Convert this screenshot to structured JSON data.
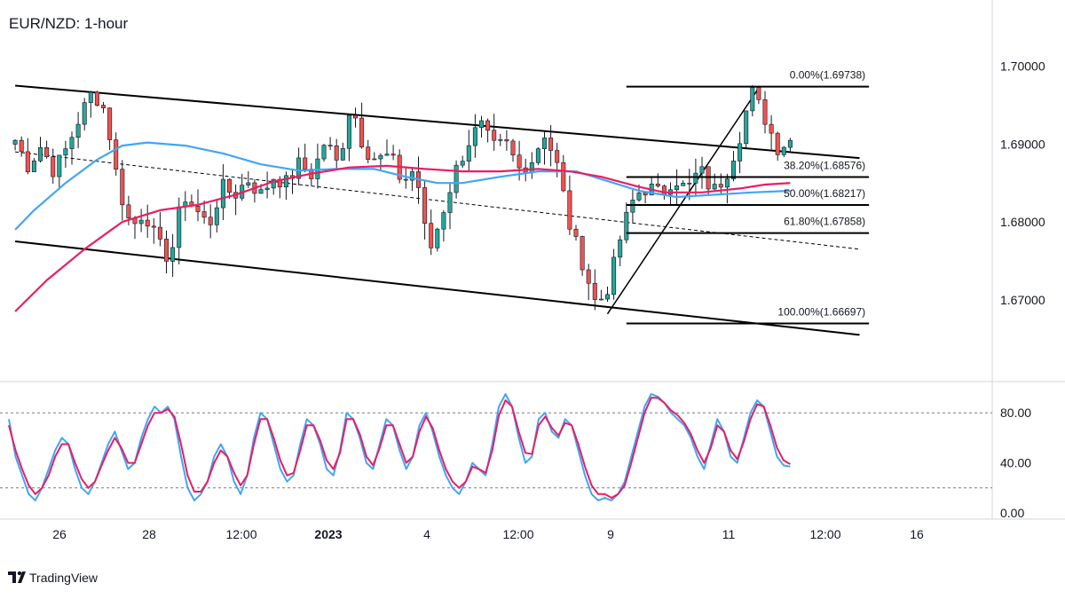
{
  "chart": {
    "title": "EUR/NZD: 1-hour",
    "brand": "TradingView"
  },
  "colors": {
    "bull": "#26a69a",
    "bear": "#ef5350",
    "wick": "#131722",
    "ma_fast": "#e91e63",
    "ma_slow": "#42a5f5",
    "stoch_k": "#42a5f5",
    "stoch_d": "#e91e63",
    "channel": "#000000",
    "grid_line": "#787b86"
  },
  "chart_data": [
    {
      "type": "candlestick",
      "title": "EUR/NZD: 1-hour",
      "y_axis": {
        "ticks": [
          "1.70000",
          "1.69000",
          "1.68000",
          "1.67000"
        ],
        "tick_values": [
          1.7,
          1.69,
          1.68,
          1.67
        ],
        "ylim": [
          1.6595,
          1.7085
        ]
      },
      "x_axis": {
        "tick_labels": [
          "26",
          "28",
          "12:00",
          "2023",
          "4",
          "12:00",
          "9",
          "11",
          "12:00",
          "16"
        ],
        "tick_bold": [
          false,
          false,
          false,
          true,
          false,
          false,
          false,
          false,
          false,
          false
        ]
      },
      "fibonacci": [
        {
          "label": "0.00%(1.69738)",
          "value": 1.69738
        },
        {
          "label": "38.20%(1.68576)",
          "value": 1.68576
        },
        {
          "label": "50.00%(1.68217)",
          "value": 1.68217
        },
        {
          "label": "61.80%(1.67858)",
          "value": 1.67858
        },
        {
          "label": "100.00%(1.66697)",
          "value": 1.66697
        }
      ],
      "close_path": [
        1.6905,
        1.6872,
        1.6898,
        1.6865,
        1.6895,
        1.6935,
        1.6968,
        1.6942,
        1.6845,
        1.6792,
        1.6815,
        1.6772,
        1.6752,
        1.6836,
        1.6815,
        1.6795,
        1.6845,
        1.6835,
        1.6855,
        1.6835,
        1.6858,
        1.685,
        1.6875,
        1.686,
        1.6905,
        1.6872,
        1.6955,
        1.6895,
        1.688,
        1.6885,
        1.685,
        1.687,
        1.6758,
        1.6808,
        1.6862,
        1.69,
        1.6925,
        1.6895,
        1.69,
        1.6868,
        1.688,
        1.6915,
        1.687,
        1.679,
        1.6745,
        1.6692,
        1.672,
        1.679,
        1.6835,
        1.6845,
        1.6835,
        1.6858,
        1.684,
        1.6868,
        1.6838,
        1.686,
        1.6905,
        1.6968,
        1.6935,
        1.6896,
        1.6905
      ],
      "ma_fast": [
        [
          1,
          1.6685
        ],
        [
          6,
          1.6725
        ],
        [
          12,
          1.6765
        ],
        [
          18,
          1.68
        ],
        [
          24,
          1.6815
        ],
        [
          30,
          1.6822
        ],
        [
          36,
          1.6835
        ],
        [
          42,
          1.6852
        ],
        [
          48,
          1.6862
        ],
        [
          54,
          1.687
        ],
        [
          60,
          1.6872
        ],
        [
          66,
          1.6868
        ],
        [
          72,
          1.6865
        ],
        [
          78,
          1.6865
        ],
        [
          84,
          1.6868
        ],
        [
          89,
          1.6865
        ],
        [
          94,
          1.6858
        ],
        [
          100,
          1.6845
        ],
        [
          104,
          1.6838
        ],
        [
          110,
          1.6838
        ],
        [
          116,
          1.6843
        ],
        [
          120,
          1.6848
        ],
        [
          124,
          1.685
        ]
      ],
      "ma_slow": [
        [
          1,
          1.679
        ],
        [
          4,
          1.6815
        ],
        [
          9,
          1.685
        ],
        [
          14,
          1.688
        ],
        [
          18,
          1.6898
        ],
        [
          22,
          1.6902
        ],
        [
          28,
          1.6898
        ],
        [
          34,
          1.6888
        ],
        [
          40,
          1.6874
        ],
        [
          46,
          1.6866
        ],
        [
          52,
          1.6868
        ],
        [
          58,
          1.6868
        ],
        [
          63,
          1.6858
        ],
        [
          68,
          1.685
        ],
        [
          72,
          1.685
        ],
        [
          78,
          1.6858
        ],
        [
          84,
          1.6865
        ],
        [
          90,
          1.6865
        ],
        [
          94,
          1.6855
        ],
        [
          100,
          1.684
        ],
        [
          106,
          1.6832
        ],
        [
          112,
          1.6835
        ],
        [
          118,
          1.6838
        ],
        [
          124,
          1.684
        ]
      ],
      "channel_upper": [
        [
          1,
          1.6975
        ],
        [
          135,
          1.6882
        ]
      ],
      "channel_lower": [
        [
          1,
          1.6775
        ],
        [
          135,
          1.6655
        ]
      ],
      "channel_mid": [
        [
          1,
          1.689
        ],
        [
          135,
          1.6765
        ]
      ],
      "swing_line": [
        [
          95,
          1.6682
        ],
        [
          119,
          1.6972
        ]
      ]
    },
    {
      "type": "line",
      "title": "",
      "y_axis": {
        "ticks": [
          "80.00",
          "40.00",
          "0.00"
        ],
        "tick_values": [
          80,
          40,
          0
        ],
        "ylim": [
          -5,
          105
        ],
        "levels": [
          80,
          20
        ]
      },
      "series": [
        {
          "values": [
            75,
            45,
            30,
            15,
            10,
            20,
            35,
            50,
            60,
            55,
            35,
            20,
            15,
            25,
            40,
            55,
            65,
            50,
            35,
            40,
            60,
            75,
            85,
            80,
            85,
            75,
            45,
            20,
            10,
            15,
            25,
            45,
            55,
            45,
            25,
            15,
            30,
            60,
            80,
            75,
            55,
            35,
            25,
            30,
            55,
            75,
            70,
            55,
            35,
            30,
            50,
            80,
            75,
            60,
            40,
            35,
            55,
            75,
            70,
            50,
            35,
            45,
            70,
            80,
            65,
            45,
            30,
            20,
            15,
            25,
            40,
            35,
            30,
            55,
            85,
            95,
            85,
            60,
            40,
            45,
            75,
            80,
            65,
            60,
            75,
            70,
            50,
            30,
            15,
            10,
            12,
            10,
            15,
            25,
            45,
            65,
            85,
            95,
            93,
            88,
            80,
            75,
            70,
            60,
            45,
            35,
            55,
            75,
            65,
            45,
            40,
            60,
            80,
            90,
            85,
            65,
            45,
            38,
            37
          ]
        },
        {
          "values": [
            70,
            50,
            35,
            22,
            15,
            20,
            30,
            45,
            55,
            55,
            40,
            27,
            20,
            25,
            38,
            50,
            60,
            52,
            40,
            40,
            55,
            70,
            80,
            80,
            83,
            77,
            55,
            30,
            17,
            17,
            25,
            40,
            50,
            45,
            32,
            22,
            30,
            55,
            75,
            75,
            60,
            42,
            30,
            32,
            50,
            70,
            70,
            58,
            42,
            35,
            48,
            75,
            75,
            63,
            45,
            38,
            52,
            70,
            70,
            55,
            40,
            45,
            65,
            77,
            68,
            50,
            35,
            25,
            20,
            25,
            37,
            35,
            32,
            50,
            78,
            90,
            85,
            65,
            48,
            47,
            70,
            77,
            68,
            62,
            72,
            70,
            55,
            37,
            22,
            15,
            15,
            12,
            15,
            22,
            40,
            60,
            80,
            92,
            92,
            88,
            82,
            78,
            72,
            63,
            50,
            40,
            52,
            70,
            65,
            50,
            43,
            57,
            75,
            87,
            85,
            70,
            52,
            42,
            39
          ]
        }
      ]
    }
  ]
}
